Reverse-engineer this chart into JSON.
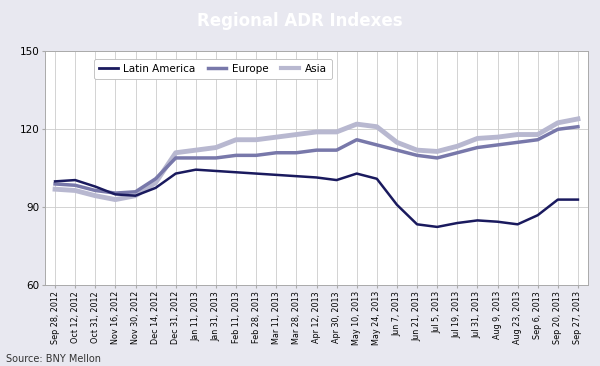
{
  "title": "Regional ADR Indexes",
  "title_bg_color": "#2e2d6b",
  "title_text_color": "#ffffff",
  "source_text": "Source: BNY Mellon",
  "ylim": [
    60,
    150
  ],
  "yticks": [
    60,
    90,
    120,
    150
  ],
  "bg_color": "#e8e8f0",
  "plot_bg_color": "#ffffff",
  "grid_color": "#cccccc",
  "x_labels": [
    "Sep 28, 2012",
    "Oct 12, 2012",
    "Oct 31, 2012",
    "Nov 16, 2012",
    "Nov 30, 2012",
    "Dec 14, 2012",
    "Dec 31, 2012",
    "Jan 11, 2013",
    "Jan 31, 2013",
    "Feb 11, 2013",
    "Feb 28, 2013",
    "Mar 11, 2013",
    "Mar 28, 2013",
    "Apr 12, 2013",
    "Apr 30, 2013",
    "May 10, 2013",
    "May 24, 2013",
    "Jun 7, 2013",
    "Jun 21, 2013",
    "Jul 5, 2013",
    "Jul 19, 2013",
    "Jul 31, 2013",
    "Aug 9, 2013",
    "Aug 23, 2013",
    "Sep 6, 2013",
    "Sep 20, 2013",
    "Sep 27, 2013"
  ],
  "latin_america": [
    100,
    100.5,
    98,
    95,
    94.5,
    97.5,
    103,
    104.5,
    104,
    103.5,
    103,
    102.5,
    102,
    101.5,
    100.5,
    103,
    101,
    91,
    83.5,
    82.5,
    84,
    85,
    84.5,
    83.5,
    87,
    93,
    93
  ],
  "europe": [
    99,
    98.5,
    96.5,
    95.5,
    96,
    101,
    109,
    109,
    109,
    110,
    110,
    111,
    111,
    112,
    112,
    116,
    114,
    112,
    110,
    109,
    111,
    113,
    114,
    115,
    116,
    120,
    121
  ],
  "asia": [
    97,
    96.5,
    94.5,
    93,
    94.5,
    99.5,
    111,
    112,
    113,
    116,
    116,
    117,
    118,
    119,
    119,
    122,
    121,
    115,
    112,
    111.5,
    113.5,
    116.5,
    117,
    118,
    118,
    122.5,
    124
  ],
  "latin_america_color": "#1a1a5e",
  "europe_color": "#7878aa",
  "asia_color": "#b8b8d0",
  "latin_america_lw": 1.8,
  "europe_lw": 2.5,
  "asia_lw": 3.5
}
